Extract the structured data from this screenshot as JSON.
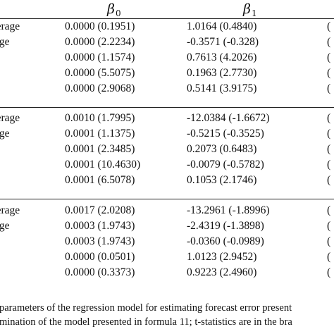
{
  "table": {
    "headers": {
      "beta0": {
        "symbol": "β",
        "subscript": "0"
      },
      "beta1": {
        "symbol": "β",
        "subscript": "1"
      }
    },
    "groups": [
      {
        "rows": [
          {
            "label": "average",
            "beta0": "0.0000 (0.1951)",
            "beta1": "1.0164 (0.4840)",
            "edge": "("
          },
          {
            "label": "erage",
            "beta0": "0.0000 (2.2234)",
            "beta1": "-0.3571 (-0.328)",
            "edge": "("
          },
          {
            "label": "",
            "beta0": "0.0000 (1.1574)",
            "beta1": "0.7613 (4.2026)",
            "edge": "("
          },
          {
            "label": "",
            "beta0": "0.0000 (5.5075)",
            "beta1": "0.1963 (2.7730)",
            "edge": "("
          },
          {
            "label": "",
            "beta0": "0.0000 (2.9068)",
            "beta1": "0.5141 (3.9175)",
            "edge": "("
          }
        ]
      },
      {
        "rows": [
          {
            "label": "average",
            "beta0": "0.0010 (1.7995)",
            "beta1": "-12.0384 (-1.6672)",
            "edge": "("
          },
          {
            "label": "erage",
            "beta0": "0.0001 (1.1375)",
            "beta1": "-0.5215 (-0.3525)",
            "edge": "("
          },
          {
            "label": "",
            "beta0": "0.0001 (2.3485)",
            "beta1": "0.2073 (0.6483)",
            "edge": "("
          },
          {
            "label": "",
            "beta0": "0.0001 (10.4630)",
            "beta1": "-0.0079 (-0.5782)",
            "edge": "("
          },
          {
            "label": "",
            "beta0": "0.0001 (6.5078)",
            "beta1": "0.1053 (2.1746)",
            "edge": "("
          }
        ]
      },
      {
        "rows": [
          {
            "label": "average",
            "beta0": "0.0017 (2.0208)",
            "beta1": "-13.2961 (-1.8996)",
            "edge": "("
          },
          {
            "label": "erage",
            "beta0": "0.0003 (1.9743)",
            "beta1": "-2.4319 (-1.3898)",
            "edge": "("
          },
          {
            "label": "",
            "beta0": "0.0003 (1.9743)",
            "beta1": "-0.0360 (-0.0989)",
            "edge": "("
          },
          {
            "label": "",
            "beta0": "0.0000 (0.0501)",
            "beta1": "1.0123 (2.9452)",
            "edge": "("
          },
          {
            "label": "",
            "beta0": "0.0000 (0.3373)",
            "beta1": "0.9223 (2.4960)",
            "edge": "("
          }
        ]
      }
    ]
  },
  "caption": {
    "line1": "parameters of the regression model for estimating forecast error present",
    "line2": "mination of the model presented in formula 11; t-statistics are in the bra"
  }
}
